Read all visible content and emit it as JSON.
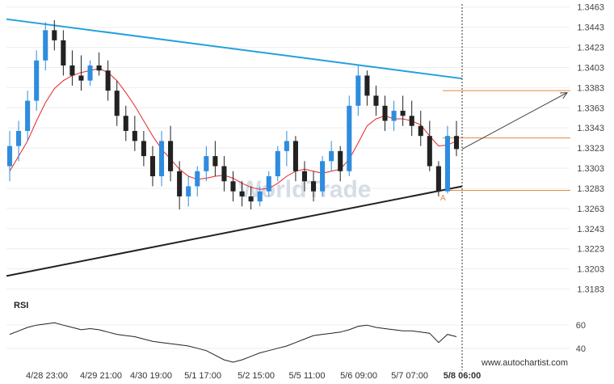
{
  "chart_data": {
    "type": "candlestick",
    "y_ticks": [
      "1.3463",
      "1.3443",
      "1.3423",
      "1.3403",
      "1.3383",
      "1.3363",
      "1.3343",
      "1.3323",
      "1.3303",
      "1.3283",
      "1.3263",
      "1.3243",
      "1.3223",
      "1.3203",
      "1.3183"
    ],
    "ylim": [
      1.3173,
      1.3466
    ],
    "x_ticks": [
      "4/28 23:00",
      "4/29 21:00",
      "4/30 19:00",
      "5/1 17:00",
      "5/2 15:00",
      "5/5 11:00",
      "5/6 09:00",
      "5/7 07:00",
      "5/8 06:00"
    ],
    "ohlc": [
      [
        1.3305,
        1.334,
        1.329,
        1.3325
      ],
      [
        1.3325,
        1.335,
        1.331,
        1.334
      ],
      [
        1.334,
        1.338,
        1.333,
        1.337
      ],
      [
        1.337,
        1.342,
        1.336,
        1.341
      ],
      [
        1.341,
        1.3448,
        1.34,
        1.344
      ],
      [
        1.344,
        1.345,
        1.342,
        1.343
      ],
      [
        1.343,
        1.344,
        1.3395,
        1.3405
      ],
      [
        1.3405,
        1.342,
        1.3385,
        1.3395
      ],
      [
        1.3395,
        1.3415,
        1.338,
        1.339
      ],
      [
        1.339,
        1.341,
        1.3385,
        1.3405
      ],
      [
        1.3405,
        1.3418,
        1.3395,
        1.34
      ],
      [
        1.34,
        1.341,
        1.337,
        1.338
      ],
      [
        1.338,
        1.339,
        1.3345,
        1.3355
      ],
      [
        1.3355,
        1.3365,
        1.333,
        1.334
      ],
      [
        1.334,
        1.3355,
        1.332,
        1.333
      ],
      [
        1.333,
        1.334,
        1.3305,
        1.3315
      ],
      [
        1.3315,
        1.3325,
        1.3285,
        1.3295
      ],
      [
        1.3295,
        1.334,
        1.3285,
        1.333
      ],
      [
        1.333,
        1.3345,
        1.329,
        1.33
      ],
      [
        1.33,
        1.331,
        1.3262,
        1.3275
      ],
      [
        1.3275,
        1.3295,
        1.3265,
        1.3285
      ],
      [
        1.3285,
        1.3305,
        1.3275,
        1.33
      ],
      [
        1.33,
        1.3325,
        1.329,
        1.3315
      ],
      [
        1.3315,
        1.333,
        1.3295,
        1.3305
      ],
      [
        1.3305,
        1.3315,
        1.328,
        1.329
      ],
      [
        1.329,
        1.33,
        1.327,
        1.328
      ],
      [
        1.328,
        1.329,
        1.3265,
        1.3275
      ],
      [
        1.3275,
        1.3285,
        1.3262,
        1.327
      ],
      [
        1.327,
        1.3285,
        1.3265,
        1.328
      ],
      [
        1.328,
        1.33,
        1.3275,
        1.3295
      ],
      [
        1.3295,
        1.3325,
        1.329,
        1.332
      ],
      [
        1.332,
        1.334,
        1.3305,
        1.333
      ],
      [
        1.333,
        1.3335,
        1.329,
        1.33
      ],
      [
        1.33,
        1.331,
        1.328,
        1.329
      ],
      [
        1.329,
        1.33,
        1.327,
        1.328
      ],
      [
        1.328,
        1.3315,
        1.3275,
        1.331
      ],
      [
        1.331,
        1.333,
        1.33,
        1.332
      ],
      [
        1.332,
        1.3325,
        1.329,
        1.33
      ],
      [
        1.33,
        1.3375,
        1.3295,
        1.3365
      ],
      [
        1.3365,
        1.3405,
        1.3355,
        1.3395
      ],
      [
        1.3395,
        1.34,
        1.3365,
        1.3375
      ],
      [
        1.3375,
        1.3385,
        1.3355,
        1.3365
      ],
      [
        1.3365,
        1.3375,
        1.334,
        1.335
      ],
      [
        1.335,
        1.337,
        1.334,
        1.336
      ],
      [
        1.336,
        1.3375,
        1.3345,
        1.3355
      ],
      [
        1.3355,
        1.337,
        1.3335,
        1.3345
      ],
      [
        1.3345,
        1.336,
        1.3325,
        1.3335
      ],
      [
        1.3335,
        1.335,
        1.33,
        1.3305
      ],
      [
        1.3305,
        1.331,
        1.3275,
        1.328
      ],
      [
        1.328,
        1.3345,
        1.3278,
        1.3335
      ],
      [
        1.3335,
        1.335,
        1.3315,
        1.3322
      ]
    ],
    "ma": [
      1.33,
      1.3315,
      1.333,
      1.335,
      1.3368,
      1.3382,
      1.339,
      1.3395,
      1.3398,
      1.34,
      1.3402,
      1.3398,
      1.339,
      1.3378,
      1.3365,
      1.335,
      1.3335,
      1.3322,
      1.3312,
      1.3302,
      1.3295,
      1.3292,
      1.3293,
      1.3295,
      1.3296,
      1.3293,
      1.3288,
      1.3284,
      1.3282,
      1.3283,
      1.3288,
      1.3295,
      1.33,
      1.3302,
      1.33,
      1.3298,
      1.33,
      1.3302,
      1.3312,
      1.3328,
      1.3345,
      1.3352,
      1.3355,
      1.3352,
      1.3352,
      1.335,
      1.3346,
      1.3335,
      1.3325,
      1.3326,
      1.333
    ],
    "resistance_line": [
      [
        1.3451,
        1.3392
      ]
    ],
    "support_line": [
      [
        1.3196,
        1.3285
      ]
    ],
    "horizontal_levels": [
      1.338,
      1.3333,
      1.3281
    ],
    "projection": [
      [
        1.3322,
        1.3378
      ]
    ],
    "marker_label": "A",
    "rsi_ticks": [
      "60",
      "40"
    ],
    "rsi_ylim": [
      28,
      72
    ],
    "rsi": [
      52,
      55,
      58,
      60,
      61,
      62,
      60,
      58,
      56,
      57,
      56,
      54,
      52,
      51,
      50,
      48,
      46,
      45,
      44,
      43,
      42,
      40,
      38,
      34,
      30,
      28,
      30,
      33,
      36,
      38,
      40,
      42,
      45,
      48,
      51,
      52,
      53,
      54,
      56,
      59,
      60,
      58,
      57,
      56,
      55,
      55,
      54,
      53,
      45,
      52,
      50
    ],
    "panel_label": "RSI",
    "attribution": "www.autochartist.com",
    "watermark": "WorldTrade"
  },
  "colors": {
    "bullish": "#2f8cde",
    "bearish": "#222222",
    "ma": "#e6262a",
    "resistance": "#24a0dd",
    "support": "#222222",
    "level": "#e38a3b",
    "projection": "#444444",
    "rsi": "#222222",
    "grid": "#eeeeee"
  }
}
